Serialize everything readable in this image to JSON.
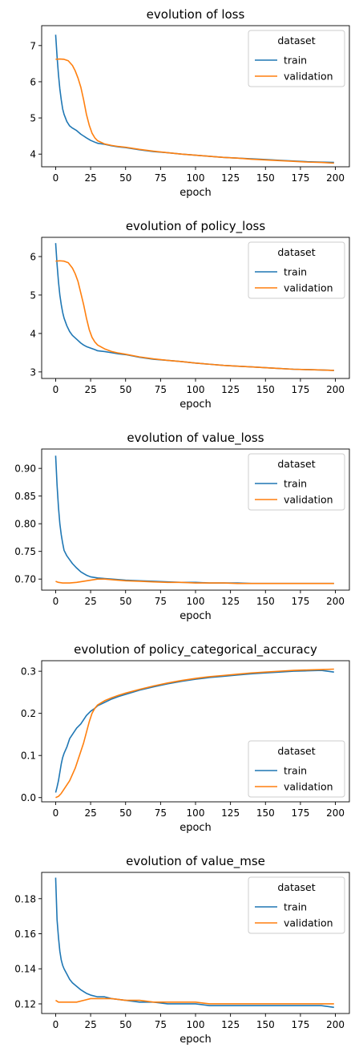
{
  "colors": {
    "train": "#1f77b4",
    "validation": "#ff7f0e"
  },
  "chart_data": [
    {
      "type": "line",
      "title": "evolution of loss",
      "xlabel": "epoch",
      "ylabel": "",
      "xlim": [
        -10,
        210
      ],
      "ylim": [
        3.65,
        7.55
      ],
      "xticks": [
        0,
        25,
        50,
        75,
        100,
        125,
        150,
        175,
        200
      ],
      "yticks": [
        4,
        5,
        6,
        7
      ],
      "legend": {
        "title": "dataset",
        "position": "upper-right"
      },
      "series": [
        {
          "name": "train",
          "x": [
            0,
            1,
            2,
            3,
            4,
            5,
            6,
            8,
            10,
            12,
            15,
            18,
            20,
            22,
            25,
            28,
            30,
            35,
            40,
            45,
            50,
            60,
            70,
            80,
            90,
            100,
            110,
            120,
            130,
            140,
            150,
            160,
            170,
            180,
            190,
            199
          ],
          "y": [
            7.3,
            6.7,
            6.2,
            5.8,
            5.5,
            5.25,
            5.1,
            4.9,
            4.78,
            4.72,
            4.65,
            4.55,
            4.5,
            4.45,
            4.38,
            4.33,
            4.3,
            4.27,
            4.23,
            4.2,
            4.18,
            4.12,
            4.07,
            4.04,
            4.0,
            3.97,
            3.94,
            3.91,
            3.89,
            3.87,
            3.85,
            3.83,
            3.81,
            3.79,
            3.78,
            3.77
          ]
        },
        {
          "name": "validation",
          "x": [
            0,
            3,
            6,
            9,
            12,
            14,
            16,
            18,
            20,
            22,
            24,
            26,
            28,
            30,
            35,
            40,
            45,
            50,
            60,
            70,
            80,
            90,
            100,
            110,
            120,
            130,
            140,
            150,
            160,
            170,
            180,
            190,
            199
          ],
          "y": [
            6.62,
            6.63,
            6.62,
            6.58,
            6.45,
            6.3,
            6.1,
            5.85,
            5.5,
            5.1,
            4.8,
            4.58,
            4.45,
            4.37,
            4.28,
            4.24,
            4.21,
            4.19,
            4.13,
            4.08,
            4.04,
            4.0,
            3.97,
            3.94,
            3.91,
            3.89,
            3.86,
            3.84,
            3.82,
            3.8,
            3.78,
            3.77,
            3.75
          ]
        }
      ]
    },
    {
      "type": "line",
      "title": "evolution of policy_loss",
      "xlabel": "epoch",
      "ylabel": "",
      "xlim": [
        -10,
        210
      ],
      "ylim": [
        2.83,
        6.5
      ],
      "xticks": [
        0,
        25,
        50,
        75,
        100,
        125,
        150,
        175,
        200
      ],
      "yticks": [
        3,
        4,
        5,
        6
      ],
      "legend": {
        "title": "dataset",
        "position": "upper-right"
      },
      "series": [
        {
          "name": "train",
          "x": [
            0,
            1,
            2,
            3,
            4,
            5,
            6,
            8,
            10,
            12,
            15,
            18,
            20,
            22,
            25,
            28,
            30,
            35,
            40,
            45,
            50,
            60,
            70,
            80,
            90,
            100,
            110,
            120,
            130,
            140,
            150,
            160,
            170,
            180,
            190,
            199
          ],
          "y": [
            6.35,
            5.8,
            5.35,
            5.0,
            4.75,
            4.55,
            4.4,
            4.2,
            4.05,
            3.95,
            3.85,
            3.75,
            3.7,
            3.66,
            3.62,
            3.58,
            3.55,
            3.53,
            3.5,
            3.47,
            3.45,
            3.38,
            3.33,
            3.3,
            3.27,
            3.23,
            3.2,
            3.17,
            3.15,
            3.13,
            3.11,
            3.09,
            3.07,
            3.06,
            3.05,
            3.04
          ]
        },
        {
          "name": "validation",
          "x": [
            0,
            3,
            6,
            9,
            12,
            14,
            16,
            18,
            20,
            22,
            24,
            26,
            28,
            30,
            35,
            40,
            45,
            50,
            60,
            70,
            80,
            90,
            100,
            110,
            120,
            130,
            140,
            150,
            160,
            170,
            180,
            190,
            199
          ],
          "y": [
            5.88,
            5.89,
            5.88,
            5.84,
            5.7,
            5.55,
            5.35,
            5.05,
            4.75,
            4.4,
            4.1,
            3.9,
            3.78,
            3.7,
            3.6,
            3.53,
            3.49,
            3.46,
            3.39,
            3.34,
            3.3,
            3.27,
            3.23,
            3.2,
            3.17,
            3.15,
            3.13,
            3.11,
            3.09,
            3.07,
            3.06,
            3.05,
            3.04
          ]
        }
      ]
    },
    {
      "type": "line",
      "title": "evolution of value_loss",
      "xlabel": "epoch",
      "ylabel": "",
      "xlim": [
        -10,
        210
      ],
      "ylim": [
        0.68,
        0.935
      ],
      "xticks": [
        0,
        25,
        50,
        75,
        100,
        125,
        150,
        175,
        200
      ],
      "yticks": [
        0.7,
        0.75,
        0.8,
        0.85,
        0.9
      ],
      "legend": {
        "title": "dataset",
        "position": "upper-right"
      },
      "series": [
        {
          "name": "train",
          "x": [
            0,
            1,
            2,
            3,
            4,
            5,
            6,
            8,
            10,
            12,
            15,
            18,
            20,
            22,
            25,
            30,
            35,
            40,
            50,
            60,
            70,
            80,
            90,
            100,
            110,
            120,
            130,
            140,
            150,
            160,
            170,
            180,
            190,
            199
          ],
          "y": [
            0.923,
            0.87,
            0.83,
            0.8,
            0.78,
            0.765,
            0.752,
            0.742,
            0.735,
            0.728,
            0.72,
            0.713,
            0.71,
            0.707,
            0.704,
            0.702,
            0.701,
            0.7,
            0.698,
            0.697,
            0.696,
            0.695,
            0.694,
            0.694,
            0.693,
            0.693,
            0.693,
            0.692,
            0.692,
            0.692,
            0.692,
            0.692,
            0.692,
            0.692
          ]
        },
        {
          "name": "validation",
          "x": [
            0,
            2,
            5,
            10,
            15,
            20,
            25,
            30,
            35,
            40,
            50,
            60,
            70,
            80,
            90,
            100,
            110,
            120,
            130,
            140,
            150,
            160,
            170,
            180,
            190,
            199
          ],
          "y": [
            0.696,
            0.694,
            0.693,
            0.693,
            0.694,
            0.696,
            0.698,
            0.7,
            0.7,
            0.699,
            0.697,
            0.696,
            0.695,
            0.694,
            0.694,
            0.693,
            0.693,
            0.693,
            0.692,
            0.692,
            0.692,
            0.692,
            0.692,
            0.692,
            0.692,
            0.692
          ]
        }
      ]
    },
    {
      "type": "line",
      "title": "evolution of policy_categorical_accuracy",
      "xlabel": "epoch",
      "ylabel": "",
      "xlim": [
        -10,
        210
      ],
      "ylim": [
        -0.01,
        0.325
      ],
      "xticks": [
        0,
        25,
        50,
        75,
        100,
        125,
        150,
        175,
        200
      ],
      "yticks": [
        0.0,
        0.1,
        0.2,
        0.3
      ],
      "legend": {
        "title": "dataset",
        "position": "lower-right"
      },
      "series": [
        {
          "name": "train",
          "x": [
            0,
            1,
            2,
            3,
            4,
            5,
            6,
            8,
            10,
            12,
            15,
            18,
            20,
            22,
            25,
            28,
            30,
            35,
            40,
            45,
            50,
            60,
            70,
            80,
            90,
            100,
            110,
            120,
            130,
            140,
            150,
            160,
            170,
            180,
            190,
            199
          ],
          "y": [
            0.012,
            0.025,
            0.04,
            0.06,
            0.08,
            0.095,
            0.105,
            0.12,
            0.14,
            0.15,
            0.165,
            0.175,
            0.185,
            0.195,
            0.205,
            0.212,
            0.218,
            0.226,
            0.234,
            0.24,
            0.245,
            0.255,
            0.263,
            0.27,
            0.276,
            0.281,
            0.285,
            0.288,
            0.291,
            0.294,
            0.296,
            0.298,
            0.3,
            0.301,
            0.302,
            0.298
          ]
        },
        {
          "name": "validation",
          "x": [
            0,
            2,
            4,
            6,
            8,
            10,
            12,
            14,
            16,
            18,
            20,
            22,
            24,
            26,
            28,
            30,
            35,
            40,
            45,
            50,
            60,
            70,
            80,
            90,
            100,
            110,
            120,
            130,
            140,
            150,
            160,
            170,
            180,
            190,
            199
          ],
          "y": [
            0.0,
            0.003,
            0.01,
            0.02,
            0.03,
            0.04,
            0.055,
            0.07,
            0.09,
            0.11,
            0.13,
            0.155,
            0.18,
            0.2,
            0.212,
            0.22,
            0.23,
            0.237,
            0.243,
            0.248,
            0.257,
            0.265,
            0.272,
            0.278,
            0.283,
            0.287,
            0.29,
            0.293,
            0.296,
            0.298,
            0.3,
            0.302,
            0.303,
            0.304,
            0.305
          ]
        }
      ]
    },
    {
      "type": "line",
      "title": "evolution of value_mse",
      "xlabel": "epoch",
      "ylabel": "",
      "xlim": [
        -10,
        210
      ],
      "ylim": [
        0.1145,
        0.195
      ],
      "xticks": [
        0,
        25,
        50,
        75,
        100,
        125,
        150,
        175,
        200
      ],
      "yticks": [
        0.12,
        0.14,
        0.16,
        0.18
      ],
      "legend": {
        "title": "dataset",
        "position": "upper-right"
      },
      "series": [
        {
          "name": "train",
          "x": [
            0,
            1,
            2,
            3,
            4,
            5,
            6,
            8,
            10,
            12,
            15,
            18,
            20,
            22,
            25,
            30,
            35,
            40,
            50,
            60,
            70,
            80,
            90,
            100,
            110,
            120,
            130,
            140,
            150,
            160,
            170,
            180,
            190,
            199
          ],
          "y": [
            0.192,
            0.168,
            0.158,
            0.15,
            0.145,
            0.142,
            0.14,
            0.137,
            0.134,
            0.132,
            0.13,
            0.128,
            0.127,
            0.126,
            0.125,
            0.124,
            0.124,
            0.123,
            0.122,
            0.121,
            0.121,
            0.12,
            0.12,
            0.12,
            0.119,
            0.119,
            0.119,
            0.119,
            0.119,
            0.119,
            0.119,
            0.119,
            0.119,
            0.118
          ]
        },
        {
          "name": "validation",
          "x": [
            0,
            2,
            5,
            10,
            15,
            20,
            25,
            30,
            35,
            40,
            50,
            60,
            70,
            80,
            90,
            100,
            110,
            120,
            130,
            140,
            150,
            160,
            170,
            180,
            190,
            199
          ],
          "y": [
            0.122,
            0.121,
            0.121,
            0.121,
            0.121,
            0.122,
            0.123,
            0.123,
            0.123,
            0.123,
            0.122,
            0.122,
            0.121,
            0.121,
            0.121,
            0.121,
            0.12,
            0.12,
            0.12,
            0.12,
            0.12,
            0.12,
            0.12,
            0.12,
            0.12,
            0.12
          ]
        }
      ]
    }
  ]
}
